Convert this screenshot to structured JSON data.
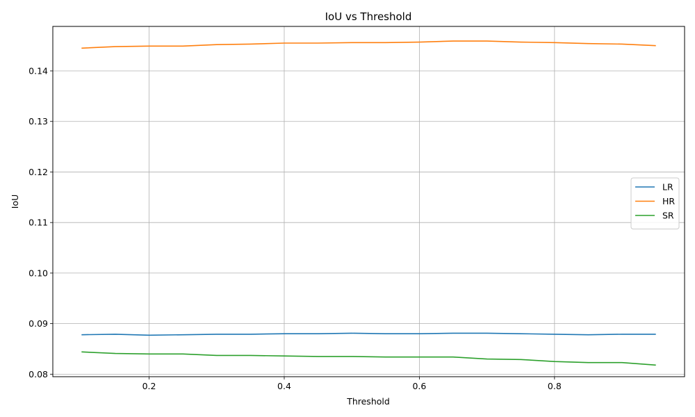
{
  "chart_data": {
    "type": "line",
    "title": "IoU vs Threshold",
    "xlabel": "Threshold",
    "ylabel": "IoU",
    "xlim": [
      0.0575,
      0.9925
    ],
    "ylim": [
      0.0795,
      0.1488
    ],
    "xticks": [
      0.2,
      0.4,
      0.6,
      0.8
    ],
    "xtick_labels": [
      "0.2",
      "0.4",
      "0.6",
      "0.8"
    ],
    "yticks": [
      0.08,
      0.09,
      0.1,
      0.11,
      0.12,
      0.13,
      0.14
    ],
    "ytick_labels": [
      "0.08",
      "0.09",
      "0.10",
      "0.11",
      "0.12",
      "0.13",
      "0.14"
    ],
    "grid": true,
    "legend_position": "center-right",
    "x": [
      0.1,
      0.15,
      0.2,
      0.25,
      0.3,
      0.35,
      0.4,
      0.45,
      0.5,
      0.55,
      0.6,
      0.65,
      0.7,
      0.75,
      0.8,
      0.85,
      0.9,
      0.95
    ],
    "series": [
      {
        "name": "LR",
        "color": "#1f77b4",
        "values": [
          0.0878,
          0.0879,
          0.0877,
          0.0878,
          0.0879,
          0.0879,
          0.088,
          0.088,
          0.0881,
          0.088,
          0.088,
          0.0881,
          0.0881,
          0.088,
          0.0879,
          0.0878,
          0.0879,
          0.0879
        ]
      },
      {
        "name": "HR",
        "color": "#ff7f0e",
        "values": [
          0.1445,
          0.1448,
          0.1449,
          0.1449,
          0.1452,
          0.1453,
          0.1455,
          0.1455,
          0.1456,
          0.1456,
          0.1457,
          0.1459,
          0.1459,
          0.1457,
          0.1456,
          0.1454,
          0.1453,
          0.145
        ]
      },
      {
        "name": "SR",
        "color": "#2ca02c",
        "values": [
          0.0844,
          0.0841,
          0.084,
          0.084,
          0.0837,
          0.0837,
          0.0836,
          0.0835,
          0.0835,
          0.0834,
          0.0834,
          0.0834,
          0.083,
          0.0829,
          0.0825,
          0.0823,
          0.0823,
          0.0818
        ]
      }
    ]
  }
}
